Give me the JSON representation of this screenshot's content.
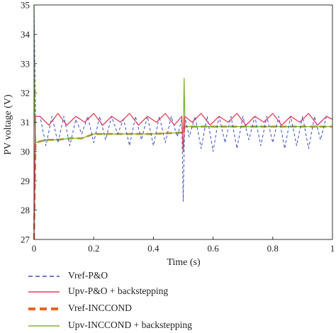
{
  "chart_data": {
    "type": "line",
    "xlabel": "Time (s)",
    "ylabel": "PV voltage (V)",
    "xlim": [
      0,
      1
    ],
    "ylim": [
      27,
      35
    ],
    "xticks": [
      "0",
      "0.2",
      "0.4",
      "0.6",
      "0.8",
      "1"
    ],
    "yticks": [
      "27",
      "28",
      "29",
      "30",
      "31",
      "32",
      "33",
      "34",
      "35"
    ],
    "grid": false,
    "legend_position": "bottom",
    "series": [
      {
        "name": "Vref-P&O",
        "color": "#3a4fc4",
        "style": "dashed",
        "x": [
          0,
          0.005,
          0.02,
          0.04,
          0.06,
          0.08,
          0.1,
          0.12,
          0.14,
          0.16,
          0.18,
          0.2,
          0.22,
          0.24,
          0.26,
          0.28,
          0.3,
          0.32,
          0.34,
          0.36,
          0.38,
          0.4,
          0.42,
          0.44,
          0.46,
          0.48,
          0.495,
          0.5,
          0.505,
          0.52,
          0.54,
          0.56,
          0.58,
          0.6,
          0.62,
          0.64,
          0.66,
          0.68,
          0.7,
          0.72,
          0.74,
          0.76,
          0.78,
          0.8,
          0.82,
          0.84,
          0.86,
          0.88,
          0.9,
          0.92,
          0.94,
          0.96,
          0.98,
          1.0
        ],
        "values": [
          35,
          31.2,
          31.2,
          30.2,
          31.2,
          30.3,
          31.2,
          30.2,
          31.1,
          30.6,
          31.2,
          30.3,
          31.2,
          30.4,
          31.2,
          30.6,
          31.1,
          30.2,
          31.2,
          30.4,
          31.2,
          30.2,
          31.2,
          30.3,
          31.2,
          30.5,
          31.1,
          28.3,
          31.2,
          30.5,
          31.2,
          30.1,
          31.2,
          30.0,
          31.2,
          30.3,
          31.2,
          30.1,
          31.2,
          30.4,
          31.2,
          30.2,
          31.2,
          30.3,
          31.2,
          30.1,
          31.2,
          30.2,
          31.2,
          30.1,
          31.2,
          30.4,
          31.2,
          31.1
        ]
      },
      {
        "name": "Upv-P&O + backstepping",
        "color": "#e0405a",
        "style": "solid",
        "x": [
          0,
          0.005,
          0.02,
          0.05,
          0.08,
          0.11,
          0.14,
          0.17,
          0.2,
          0.23,
          0.26,
          0.29,
          0.32,
          0.35,
          0.38,
          0.41,
          0.44,
          0.47,
          0.495,
          0.5,
          0.505,
          0.53,
          0.56,
          0.59,
          0.62,
          0.65,
          0.68,
          0.71,
          0.74,
          0.77,
          0.8,
          0.83,
          0.86,
          0.89,
          0.92,
          0.95,
          0.98,
          1.0
        ],
        "values": [
          27,
          31.2,
          31.2,
          30.9,
          31.3,
          30.9,
          31.2,
          31.0,
          31.3,
          30.9,
          31.2,
          31.0,
          31.3,
          30.9,
          31.2,
          31.0,
          31.3,
          30.9,
          31.2,
          30.0,
          31.2,
          31.0,
          31.3,
          30.9,
          31.2,
          31.0,
          31.3,
          30.9,
          31.2,
          31.0,
          31.3,
          30.9,
          31.2,
          31.0,
          31.3,
          30.9,
          31.2,
          31.1
        ]
      },
      {
        "name": "Vref-INCCOND",
        "color": "#e8641e",
        "style": "dashed-thick",
        "x": [
          0,
          0.005,
          0.04,
          0.08,
          0.12,
          0.16,
          0.2,
          0.3,
          0.4,
          0.5,
          0.505,
          0.6,
          0.7,
          0.8,
          0.9,
          1.0
        ],
        "values": [
          27,
          30.3,
          30.4,
          30.4,
          30.45,
          30.45,
          30.6,
          30.6,
          30.6,
          30.65,
          30.85,
          30.85,
          30.85,
          30.85,
          30.85,
          30.85
        ]
      },
      {
        "name": "Upv-INCCOND + backstepping",
        "color": "#7ab83a",
        "style": "solid",
        "x": [
          0,
          0.003,
          0.006,
          0.04,
          0.08,
          0.12,
          0.16,
          0.2,
          0.3,
          0.4,
          0.5,
          0.503,
          0.506,
          0.6,
          0.7,
          0.8,
          0.9,
          1.0
        ],
        "values": [
          35,
          31.0,
          30.3,
          30.4,
          30.4,
          30.45,
          30.45,
          30.6,
          30.6,
          30.6,
          30.65,
          32.5,
          30.85,
          30.85,
          30.85,
          30.85,
          30.85,
          30.85
        ]
      }
    ]
  }
}
